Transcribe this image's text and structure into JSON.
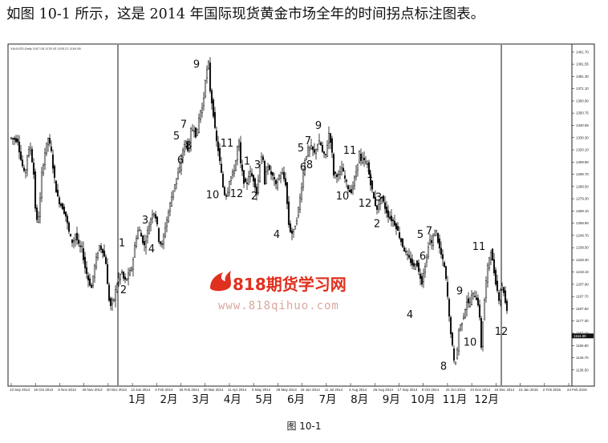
{
  "intro_text": "如图 10-1 所示，这是 2014 年国际现货黄金市场全年的时间拐点标注图表。",
  "caption": "图 10-1",
  "watermark": {
    "brand": "818期货学习网",
    "url": "www.818qihuo.com",
    "color": "#e0301e"
  },
  "chart_data": {
    "type": "candlestick",
    "title": "XAUUSD,Daily  1167.08 1178.43 1155.21 1164.89",
    "y_ticks": [
      "1401.70",
      "1391.55",
      "1381.30",
      "1371.10",
      "1360.90",
      "1350.75",
      "1340.55",
      "1330.30",
      "1320.10",
      "1309.90",
      "1299.70",
      "1289.50",
      "1279.30",
      "1269.10",
      "1258.90",
      "1248.70",
      "1238.50",
      "1228.30",
      "1218.10",
      "1207.90",
      "1197.70",
      "1187.50",
      "1177.30",
      "1167.10",
      "1156.80",
      "1146.70",
      "1136.50"
    ],
    "ylim": [
      1131,
      1405
    ],
    "current_price": "1164.89",
    "x_dates": [
      "13 Sep 2013",
      "15 Oct 2013",
      "6 Nov 2013",
      "28 Nov 2013",
      "20 Dec 2013",
      "13 Jan 2014",
      "4 Feb 2014",
      "26 Feb 2014",
      "20 Mar 2014",
      "11 Apr 2014",
      "5 May 2014",
      "28 May 2014",
      "19 Jun 2014",
      "11 Jul 2014",
      "4 Aug 2014",
      "26 Aug 2014",
      "17 Sep 2014",
      "9 Oct 2014",
      "31 Oct 2014",
      "24 Nov 2014",
      "16 Dec 2014",
      "13 Jan 2015",
      "2 Feb 2015",
      "24 Feb 2015"
    ],
    "months": [
      "1月",
      "2月",
      "3月",
      "4月",
      "5月",
      "6月",
      "7月",
      "8月",
      "9月",
      "10月",
      "11月",
      "12月"
    ],
    "price_path": [
      [
        0,
        1330
      ],
      [
        8,
        1328
      ],
      [
        12,
        1312
      ],
      [
        17,
        1298
      ],
      [
        20,
        1316
      ],
      [
        24,
        1322
      ],
      [
        28,
        1300
      ],
      [
        31,
        1258
      ],
      [
        35,
        1268
      ],
      [
        38,
        1300
      ],
      [
        42,
        1318
      ],
      [
        46,
        1330
      ],
      [
        50,
        1318
      ],
      [
        53,
        1300
      ],
      [
        57,
        1282
      ],
      [
        61,
        1275
      ],
      [
        64,
        1272
      ],
      [
        68,
        1265
      ],
      [
        73,
        1248
      ],
      [
        77,
        1242
      ],
      [
        80,
        1250
      ],
      [
        84,
        1240
      ],
      [
        88,
        1238
      ],
      [
        92,
        1222
      ],
      [
        96,
        1212
      ],
      [
        100,
        1205
      ],
      [
        103,
        1220
      ],
      [
        107,
        1232
      ],
      [
        110,
        1240
      ],
      [
        114,
        1236
      ],
      [
        118,
        1226
      ],
      [
        121,
        1198
      ],
      [
        124,
        1190
      ],
      [
        128,
        1196
      ],
      [
        131,
        1206
      ],
      [
        135,
        1215
      ],
      [
        138,
        1218
      ],
      [
        141,
        1210
      ],
      [
        144,
        1213
      ],
      [
        148,
        1218
      ],
      [
        151,
        1224
      ],
      [
        155,
        1245
      ],
      [
        159,
        1255
      ],
      [
        162,
        1248
      ],
      [
        166,
        1240
      ],
      [
        170,
        1252
      ],
      [
        173,
        1260
      ],
      [
        177,
        1270
      ],
      [
        181,
        1262
      ],
      [
        184,
        1245
      ],
      [
        188,
        1240
      ],
      [
        192,
        1256
      ],
      [
        196,
        1268
      ],
      [
        199,
        1278
      ],
      [
        203,
        1290
      ],
      [
        206,
        1296
      ],
      [
        210,
        1304
      ],
      [
        214,
        1320
      ],
      [
        218,
        1327
      ],
      [
        221,
        1318
      ],
      [
        224,
        1336
      ],
      [
        228,
        1338
      ],
      [
        231,
        1330
      ],
      [
        235,
        1352
      ],
      [
        239,
        1356
      ],
      [
        242,
        1380
      ],
      [
        246,
        1392
      ],
      [
        248,
        1370
      ],
      [
        252,
        1350
      ],
      [
        255,
        1330
      ],
      [
        258,
        1320
      ],
      [
        262,
        1300
      ],
      [
        265,
        1284
      ],
      [
        269,
        1282
      ],
      [
        272,
        1295
      ],
      [
        276,
        1300
      ],
      [
        279,
        1306
      ],
      [
        282,
        1322
      ],
      [
        284,
        1326
      ],
      [
        286,
        1308
      ],
      [
        290,
        1294
      ],
      [
        293,
        1290
      ],
      [
        297,
        1302
      ],
      [
        300,
        1298
      ],
      [
        303,
        1294
      ],
      [
        306,
        1284
      ],
      [
        309,
        1300
      ],
      [
        311,
        1318
      ],
      [
        314,
        1310
      ],
      [
        316,
        1290
      ],
      [
        319,
        1310
      ],
      [
        322,
        1302
      ],
      [
        326,
        1298
      ],
      [
        330,
        1290
      ],
      [
        334,
        1298
      ],
      [
        338,
        1300
      ],
      [
        342,
        1292
      ],
      [
        346,
        1258
      ],
      [
        349,
        1250
      ],
      [
        352,
        1252
      ],
      [
        356,
        1263
      ],
      [
        359,
        1275
      ],
      [
        363,
        1295
      ],
      [
        366,
        1312
      ],
      [
        370,
        1320
      ],
      [
        374,
        1322
      ],
      [
        378,
        1317
      ],
      [
        381,
        1324
      ],
      [
        385,
        1327
      ],
      [
        389,
        1315
      ],
      [
        392,
        1316
      ],
      [
        396,
        1334
      ],
      [
        399,
        1325
      ],
      [
        402,
        1300
      ],
      [
        405,
        1300
      ],
      [
        409,
        1298
      ],
      [
        412,
        1305
      ],
      [
        416,
        1296
      ],
      [
        419,
        1290
      ],
      [
        423,
        1284
      ],
      [
        426,
        1290
      ],
      [
        430,
        1302
      ],
      [
        434,
        1318
      ],
      [
        436,
        1310
      ],
      [
        438,
        1312
      ],
      [
        441,
        1310
      ],
      [
        444,
        1308
      ],
      [
        447,
        1296
      ],
      [
        450,
        1286
      ],
      [
        453,
        1276
      ],
      [
        457,
        1270
      ],
      [
        461,
        1282
      ],
      [
        464,
        1276
      ],
      [
        467,
        1270
      ],
      [
        471,
        1264
      ],
      [
        474,
        1262
      ],
      [
        477,
        1260
      ],
      [
        480,
        1256
      ],
      [
        484,
        1248
      ],
      [
        488,
        1240
      ],
      [
        491,
        1235
      ],
      [
        495,
        1230
      ],
      [
        499,
        1226
      ],
      [
        502,
        1222
      ],
      [
        505,
        1228
      ],
      [
        508,
        1218
      ],
      [
        512,
        1210
      ],
      [
        515,
        1222
      ],
      [
        518,
        1230
      ],
      [
        521,
        1246
      ],
      [
        524,
        1242
      ],
      [
        527,
        1250
      ],
      [
        530,
        1252
      ],
      [
        533,
        1240
      ],
      [
        537,
        1230
      ],
      [
        540,
        1222
      ],
      [
        543,
        1206
      ],
      [
        546,
        1180
      ],
      [
        549,
        1162
      ],
      [
        552,
        1143
      ],
      [
        555,
        1145
      ],
      [
        558,
        1170
      ],
      [
        561,
        1175
      ],
      [
        564,
        1182
      ],
      [
        568,
        1194
      ],
      [
        571,
        1190
      ],
      [
        574,
        1198
      ],
      [
        577,
        1200
      ],
      [
        580,
        1196
      ],
      [
        583,
        1190
      ],
      [
        586,
        1156
      ],
      [
        589,
        1188
      ],
      [
        592,
        1210
      ],
      [
        595,
        1228
      ],
      [
        598,
        1236
      ],
      [
        601,
        1222
      ],
      [
        605,
        1206
      ],
      [
        608,
        1196
      ],
      [
        611,
        1208
      ],
      [
        614,
        1202
      ],
      [
        617,
        1188
      ],
      [
        620,
        1186
      ],
      [
        623,
        1180
      ],
      [
        626,
        1195
      ],
      [
        629,
        1204
      ],
      [
        631,
        1210
      ],
      [
        633,
        1206
      ]
    ],
    "turning_points": [
      {
        "label": "1",
        "x": 152,
        "price": 1243
      },
      {
        "label": "2",
        "x": 154,
        "price": 1204
      },
      {
        "label": "3",
        "x": 181,
        "price": 1262
      },
      {
        "label": "4",
        "x": 189,
        "price": 1238
      },
      {
        "label": "5",
        "x": 220,
        "price": 1332
      },
      {
        "label": "6",
        "x": 225,
        "price": 1312
      },
      {
        "label": "7",
        "x": 229,
        "price": 1342
      },
      {
        "label": "8",
        "x": 235,
        "price": 1324
      },
      {
        "label": "9",
        "x": 245,
        "price": 1392
      },
      {
        "label": "10",
        "x": 265,
        "price": 1283
      },
      {
        "label": "11",
        "x": 283,
        "price": 1326
      },
      {
        "label": "12",
        "x": 295,
        "price": 1284
      },
      {
        "label": "1",
        "x": 308,
        "price": 1311
      },
      {
        "label": "2",
        "x": 317,
        "price": 1282
      },
      {
        "label": "3",
        "x": 321,
        "price": 1308
      },
      {
        "label": "4",
        "x": 345,
        "price": 1250
      },
      {
        "label": "5",
        "x": 375,
        "price": 1322
      },
      {
        "label": "6",
        "x": 378,
        "price": 1306
      },
      {
        "label": "7",
        "x": 384,
        "price": 1328
      },
      {
        "label": "8",
        "x": 386,
        "price": 1308
      },
      {
        "label": "9",
        "x": 397,
        "price": 1341
      },
      {
        "label": "10",
        "x": 427,
        "price": 1282
      },
      {
        "label": "11",
        "x": 436,
        "price": 1320
      },
      {
        "label": "12",
        "x": 455,
        "price": 1276
      },
      {
        "label": "1",
        "x": 461,
        "price": 1300
      },
      {
        "label": "2",
        "x": 470,
        "price": 1259
      },
      {
        "label": "3",
        "x": 472,
        "price": 1281
      },
      {
        "label": "4",
        "x": 511,
        "price": 1183
      },
      {
        "label": "5",
        "x": 524,
        "price": 1250
      },
      {
        "label": "6",
        "x": 527,
        "price": 1232
      },
      {
        "label": "7",
        "x": 535,
        "price": 1253
      },
      {
        "label": "8",
        "x": 553,
        "price": 1140
      },
      {
        "label": "9",
        "x": 573,
        "price": 1203
      },
      {
        "label": "10",
        "x": 586,
        "price": 1160
      },
      {
        "label": "11",
        "x": 597,
        "price": 1240
      },
      {
        "label": "12",
        "x": 625,
        "price": 1169
      }
    ]
  }
}
